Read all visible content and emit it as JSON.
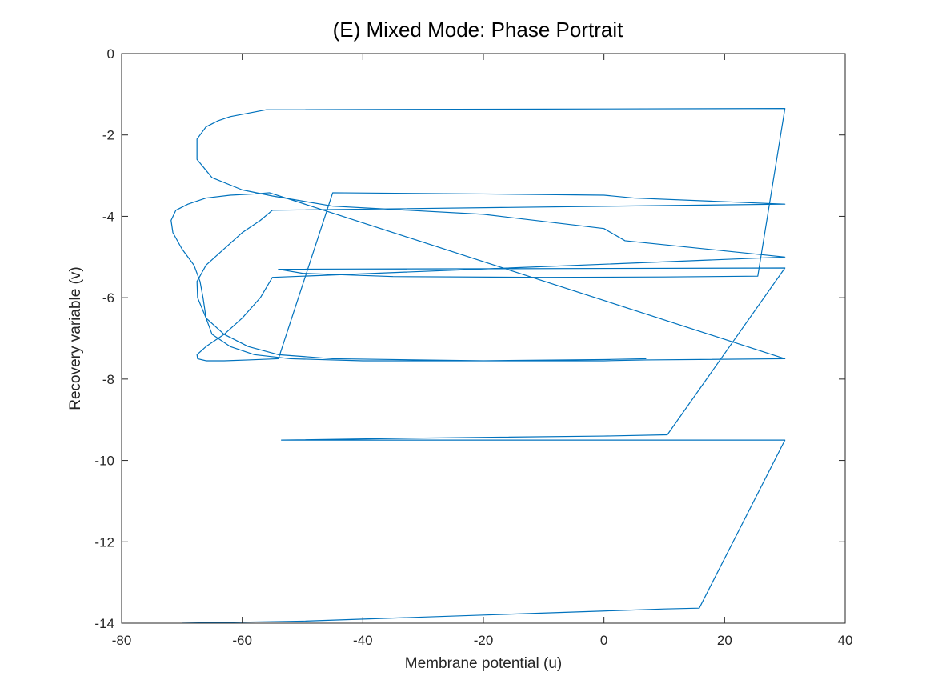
{
  "chart_data": {
    "type": "line",
    "title": "(E) Mixed Mode: Phase Portrait",
    "xlabel": "Membrane potential (u)",
    "ylabel": "Recovery variable (v)",
    "xlim": [
      -80,
      40
    ],
    "ylim": [
      -14,
      0
    ],
    "xticks": [
      "-80",
      "-60",
      "-40",
      "-20",
      "0",
      "20",
      "40"
    ],
    "yticks": [
      "0",
      "-2",
      "-4",
      "-6",
      "-8",
      "-10",
      "-12",
      "-14"
    ],
    "grid": false,
    "box": true,
    "line_color": "#0072BD",
    "series": [
      {
        "x": [
          -70,
          -50,
          -20,
          0,
          10,
          15.8,
          30,
          10,
          -53.5,
          -30,
          0,
          10.5,
          30,
          -54,
          -50,
          -35,
          -10,
          10,
          25.5,
          30,
          -56,
          -62,
          -64,
          -66,
          -67.5,
          -67.5,
          -65,
          -60,
          -55,
          -45,
          -20,
          0,
          3.5,
          30,
          -55,
          -57,
          -60,
          -63,
          -66,
          -67.5,
          -67.4,
          -66,
          -63,
          -59,
          -54,
          -45,
          -20,
          0,
          5,
          30,
          -55,
          -57,
          -60,
          -63,
          -66,
          -67.5,
          -67.4,
          -66,
          -63,
          -59,
          -54,
          -45,
          -20,
          0,
          7,
          30,
          -55.5,
          -58,
          -62,
          -66,
          -69,
          -71,
          -71.8,
          -71.5,
          -70,
          -68,
          -67,
          -66.5,
          -66,
          -65,
          -62,
          -58,
          -52,
          -40,
          -20,
          0,
          7
        ],
        "y": [
          -14,
          -13.95,
          -13.8,
          -13.7,
          -13.65,
          -13.63,
          -9.5,
          -9.5,
          -9.5,
          -9.45,
          -9.4,
          -9.37,
          -5.27,
          -5.3,
          -5.4,
          -5.48,
          -5.5,
          -5.49,
          -5.47,
          -1.35,
          -1.38,
          -1.55,
          -1.65,
          -1.8,
          -2.1,
          -2.6,
          -3.05,
          -3.35,
          -3.5,
          -3.75,
          -3.95,
          -4.3,
          -4.6,
          -5.0,
          -5.5,
          -6.0,
          -6.5,
          -6.9,
          -7.2,
          -7.4,
          -7.5,
          -7.55,
          -7.55,
          -7.53,
          -7.5,
          -3.42,
          -3.45,
          -3.48,
          -3.55,
          -3.7,
          -3.85,
          -4.1,
          -4.4,
          -4.8,
          -5.2,
          -5.6,
          -6.0,
          -6.5,
          -6.9,
          -7.2,
          -7.4,
          -7.5,
          -7.55,
          -7.55,
          -7.53,
          -7.5,
          -3.42,
          -3.45,
          -3.48,
          -3.55,
          -3.7,
          -3.85,
          -4.1,
          -4.4,
          -4.8,
          -5.2,
          -5.6,
          -6.0,
          -6.5,
          -6.9,
          -7.2,
          -7.4,
          -7.5,
          -7.55,
          -7.55,
          -7.52,
          -7.5
        ]
      }
    ]
  }
}
